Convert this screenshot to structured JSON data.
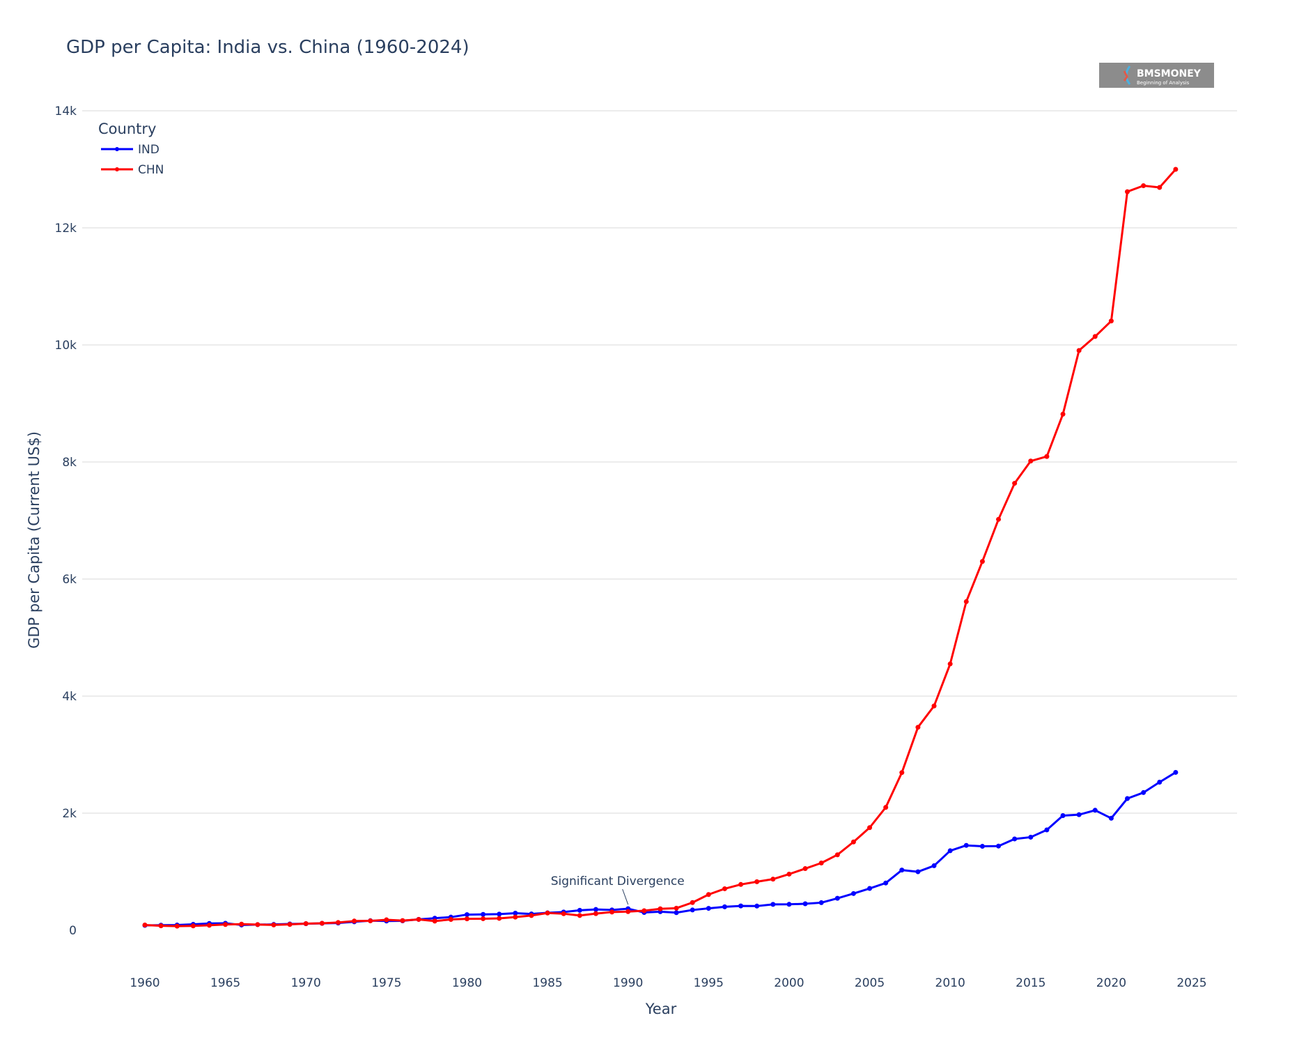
{
  "chart_data": {
    "type": "line",
    "title": "GDP per Capita: India vs. China (1960-2024)",
    "xlabel": "Year",
    "ylabel": "GDP per Capita (Current US$)",
    "xlim": [
      1956,
      2028
    ],
    "ylim": [
      -700,
      14300
    ],
    "xticks": [
      1960,
      1965,
      1970,
      1975,
      1980,
      1985,
      1990,
      1995,
      2000,
      2005,
      2010,
      2015,
      2020,
      2025
    ],
    "yticks": [
      0,
      2000,
      4000,
      6000,
      8000,
      10000,
      12000,
      14000
    ],
    "ytick_labels": [
      "0",
      "2k",
      "4k",
      "6k",
      "8k",
      "10k",
      "12k",
      "14k"
    ],
    "grid": true,
    "legend": {
      "title": "Country",
      "placement": "top-left"
    },
    "x": [
      1960,
      1961,
      1962,
      1963,
      1964,
      1965,
      1966,
      1967,
      1968,
      1969,
      1970,
      1971,
      1972,
      1973,
      1974,
      1975,
      1976,
      1977,
      1978,
      1979,
      1980,
      1981,
      1982,
      1983,
      1984,
      1985,
      1986,
      1987,
      1988,
      1989,
      1990,
      1991,
      1992,
      1993,
      1994,
      1995,
      1996,
      1997,
      1998,
      1999,
      2000,
      2001,
      2002,
      2003,
      2004,
      2005,
      2006,
      2007,
      2008,
      2009,
      2010,
      2011,
      2012,
      2013,
      2014,
      2015,
      2016,
      2017,
      2018,
      2019,
      2020,
      2021,
      2022,
      2023,
      2024
    ],
    "series": [
      {
        "name": "IND",
        "color": "#0000ff",
        "values": [
          83,
          86,
          90,
          101,
          116,
          119,
          90,
          96,
          99,
          107,
          112,
          118,
          123,
          144,
          163,
          158,
          161,
          186,
          206,
          224,
          267,
          271,
          275,
          292,
          278,
          297,
          311,
          341,
          355,
          347,
          368,
          303,
          317,
          301,
          346,
          374,
          400,
          415,
          413,
          442,
          443,
          452,
          471,
          546,
          627,
          714,
          807,
          1028,
          999,
          1102,
          1358,
          1450,
          1434,
          1438,
          1560,
          1590,
          1714,
          1958,
          1974,
          2050,
          1913,
          2250,
          2352,
          2530,
          2697
        ]
      },
      {
        "name": "CHN",
        "color": "#ff0000",
        "values": [
          90,
          76,
          70,
          74,
          85,
          98,
          104,
          96,
          91,
          100,
          113,
          119,
          132,
          157,
          160,
          178,
          165,
          185,
          156,
          184,
          195,
          197,
          203,
          225,
          251,
          294,
          282,
          252,
          284,
          311,
          318,
          333,
          366,
          377,
          473,
          610,
          709,
          782,
          829,
          873,
          959,
          1053,
          1149,
          1289,
          1509,
          1753,
          2099,
          2694,
          3468,
          3832,
          4550,
          5614,
          6301,
          7020,
          7636,
          8016,
          8094,
          8817,
          9905,
          10144,
          10409,
          12618,
          12720,
          12690,
          13000
        ]
      }
    ],
    "annotations": [
      {
        "text": "Significant Divergence",
        "x": 1990,
        "series": "IND"
      }
    ]
  },
  "logo": {
    "text": "BMSMONEY",
    "tagline": "Beginning of Analysis"
  },
  "colors": {
    "text": "#2a3f5f",
    "grid": "#e6e6e6",
    "logo_bg": "#8c8c8c"
  }
}
